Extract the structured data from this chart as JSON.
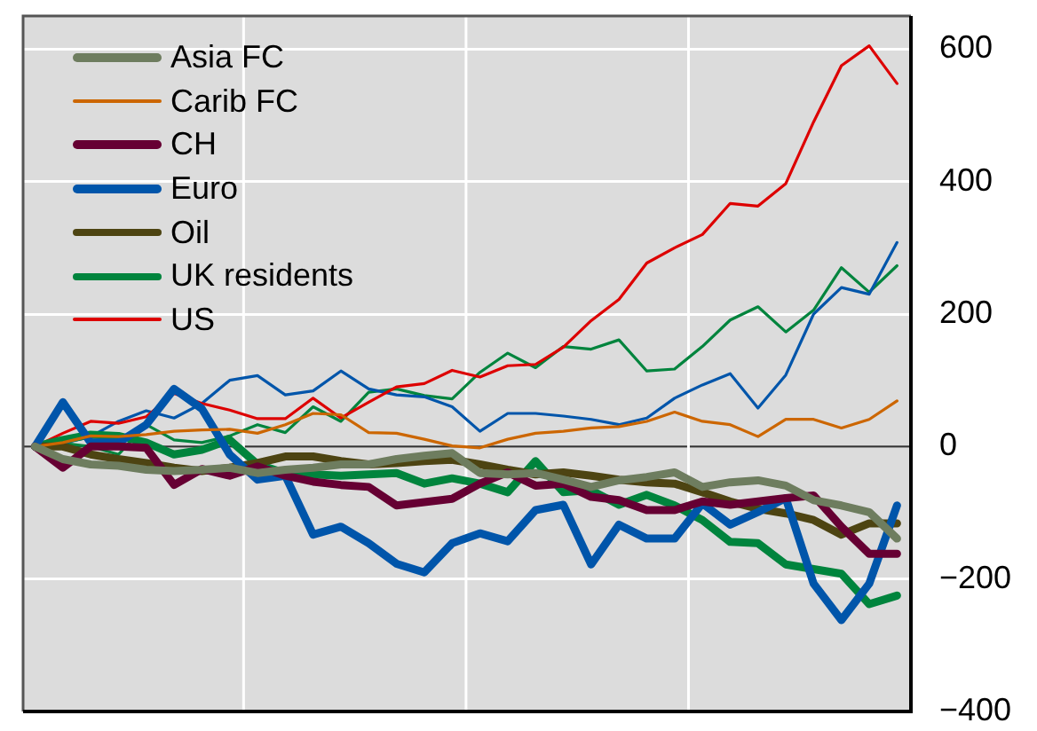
{
  "chart_data": {
    "type": "line",
    "categories": [
      null,
      null,
      null,
      null,
      null,
      null,
      null,
      null,
      null,
      null,
      null,
      null,
      null,
      null,
      null,
      null,
      null,
      null,
      null,
      null,
      null,
      null,
      null,
      null,
      null,
      null,
      null,
      null,
      null,
      null,
      null,
      null
    ],
    "ylim": [
      -400,
      650
    ],
    "yticks": [
      {
        "value": -400,
        "label": "−400"
      },
      {
        "value": -200,
        "label": "−200"
      },
      0,
      200,
      400,
      600
    ],
    "tick_labels": "y",
    "grid": true,
    "legend": "top left",
    "marker": "none",
    "line_style": "solid",
    "ref_lines": [
      {
        "axis": "y",
        "value": 0,
        "color": "#333333"
      }
    ],
    "series": [
      {
        "name": "Asia FC",
        "color": "#6e7d5f",
        "values": [
          0,
          -19,
          -27,
          -29,
          -35,
          -37,
          -35,
          -32,
          -40,
          -35,
          -32,
          -27,
          -27,
          -19,
          -14,
          -10,
          -40,
          -42,
          -40,
          -50,
          -61,
          -51,
          -46,
          -39,
          -61,
          -54,
          -51,
          -59,
          -81,
          -89,
          -99,
          -139
        ]
      },
      {
        "name": "Carib FC",
        "color": "#cc6600",
        "values": [
          0,
          6,
          16,
          15,
          18,
          23,
          25,
          26,
          20,
          33,
          50,
          48,
          21,
          20,
          11,
          1,
          -2,
          11,
          20,
          23,
          28,
          30,
          38,
          52,
          38,
          33,
          15,
          41,
          41,
          28,
          41,
          69
        ]
      },
      {
        "name": "CH",
        "color": "#660033",
        "values": [
          0,
          -32,
          0,
          0,
          -2,
          -58,
          -34,
          -44,
          -30,
          -44,
          -53,
          -58,
          -61,
          -89,
          -84,
          -79,
          -56,
          -39,
          -59,
          -56,
          -76,
          -81,
          -96,
          -96,
          -83,
          -88,
          -83,
          -78,
          -74,
          -121,
          -162,
          -162
        ]
      },
      {
        "name": "Euro",
        "color": "#0055aa",
        "values": [
          0,
          67,
          6,
          6,
          33,
          87,
          57,
          -12,
          -50,
          -44,
          -133,
          -121,
          -146,
          -177,
          -190,
          -146,
          -131,
          -143,
          -96,
          -88,
          -178,
          -118,
          -139,
          -139,
          -86,
          -118,
          -99,
          -78,
          -207,
          -262,
          -207,
          -89
        ]
      },
      {
        "name": "Oil",
        "color": "#4d4412",
        "values": [
          0,
          0,
          -12,
          -19,
          -25,
          -32,
          -37,
          -32,
          -25,
          -15,
          -15,
          -22,
          -27,
          -25,
          -22,
          -20,
          -27,
          -35,
          -42,
          -39,
          -44,
          -50,
          -54,
          -56,
          -69,
          -83,
          -94,
          -101,
          -111,
          -133,
          -116,
          -116
        ]
      },
      {
        "name": "UK residents",
        "color": "#00843d",
        "values": [
          0,
          10,
          18,
          16,
          6,
          -12,
          -5,
          10,
          -27,
          -40,
          -42,
          -44,
          -42,
          -40,
          -56,
          -48,
          -56,
          -69,
          -22,
          -69,
          -66,
          -88,
          -73,
          -89,
          -111,
          -144,
          -146,
          -178,
          -185,
          -192,
          -238,
          -225
        ]
      },
      {
        "name": "US",
        "color": "#dd0000",
        "values": [
          0,
          20,
          38,
          35,
          45,
          80,
          65,
          55,
          42,
          42,
          73,
          43,
          67,
          90,
          95,
          115,
          105,
          122,
          124,
          150,
          190,
          222,
          277,
          300,
          320,
          367,
          363,
          397,
          490,
          575,
          605,
          548
        ]
      },
      {
        "color": "#0055aa",
        "values": [
          0,
          5,
          15,
          38,
          54,
          43,
          65,
          100,
          107,
          78,
          84,
          114,
          87,
          78,
          75,
          60,
          23,
          50,
          50,
          46,
          41,
          33,
          43,
          73,
          93,
          110,
          58,
          108,
          200,
          240,
          230,
          308
        ]
      },
      {
        "color": "#00843d",
        "values": [
          0,
          5,
          0,
          -12,
          33,
          10,
          6,
          16,
          33,
          21,
          60,
          38,
          82,
          87,
          77,
          72,
          112,
          141,
          119,
          151,
          147,
          161,
          114,
          117,
          151,
          191,
          211,
          173,
          206,
          270,
          233,
          273
        ]
      }
    ]
  }
}
